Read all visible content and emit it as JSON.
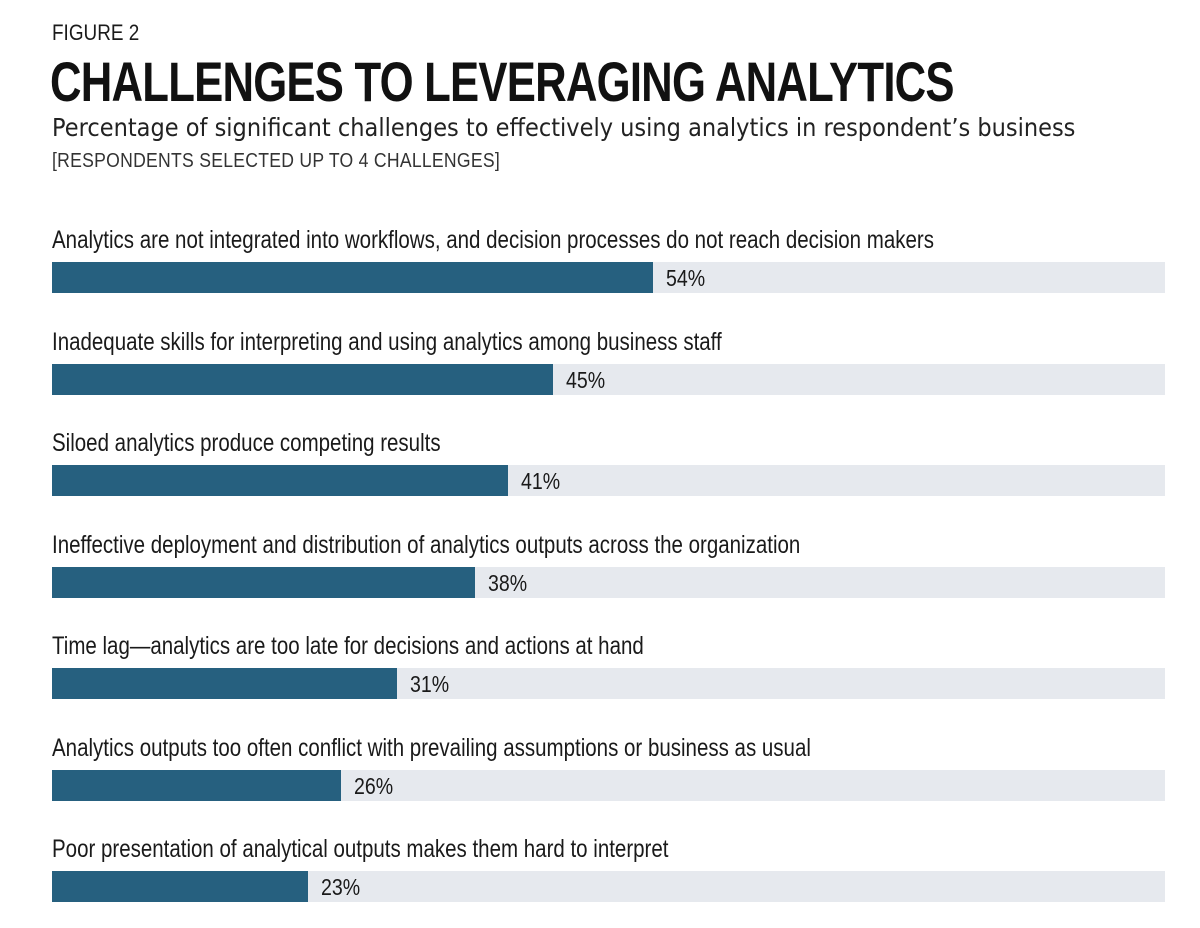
{
  "figure_label": "FIGURE 2",
  "title": "CHALLENGES TO LEVERAGING ANALYTICS",
  "subtitle": "Percentage of significant challenges to effectively using analytics in respondent’s business",
  "note": "[RESPONDENTS SELECTED UP TO 4 CHALLENGES]",
  "colors": {
    "bar": "#26607f",
    "track": "#e6e9ee"
  },
  "chart_data": {
    "type": "bar",
    "orientation": "horizontal",
    "title": "CHALLENGES TO LEVERAGING ANALYTICS",
    "xlabel": "",
    "ylabel": "",
    "xlim": [
      0,
      100
    ],
    "unit": "%",
    "grid": false,
    "categories": [
      "Analytics are not integrated into workflows, and decision processes do not reach decision makers",
      "Inadequate skills for interpreting and using analytics among business staff",
      "Siloed analytics produce competing results",
      "Ineffective deployment and distribution of analytics outputs across the organization",
      "Time lag—analytics are too late for decisions and actions at hand",
      "Analytics outputs too often conflict with prevailing assumptions or business as usual",
      "Poor presentation of analytical outputs makes them hard to interpret"
    ],
    "values": [
      54,
      45,
      41,
      38,
      31,
      26,
      23
    ],
    "value_labels": [
      "54%",
      "45%",
      "41%",
      "38%",
      "31%",
      "26%",
      "23%"
    ]
  }
}
